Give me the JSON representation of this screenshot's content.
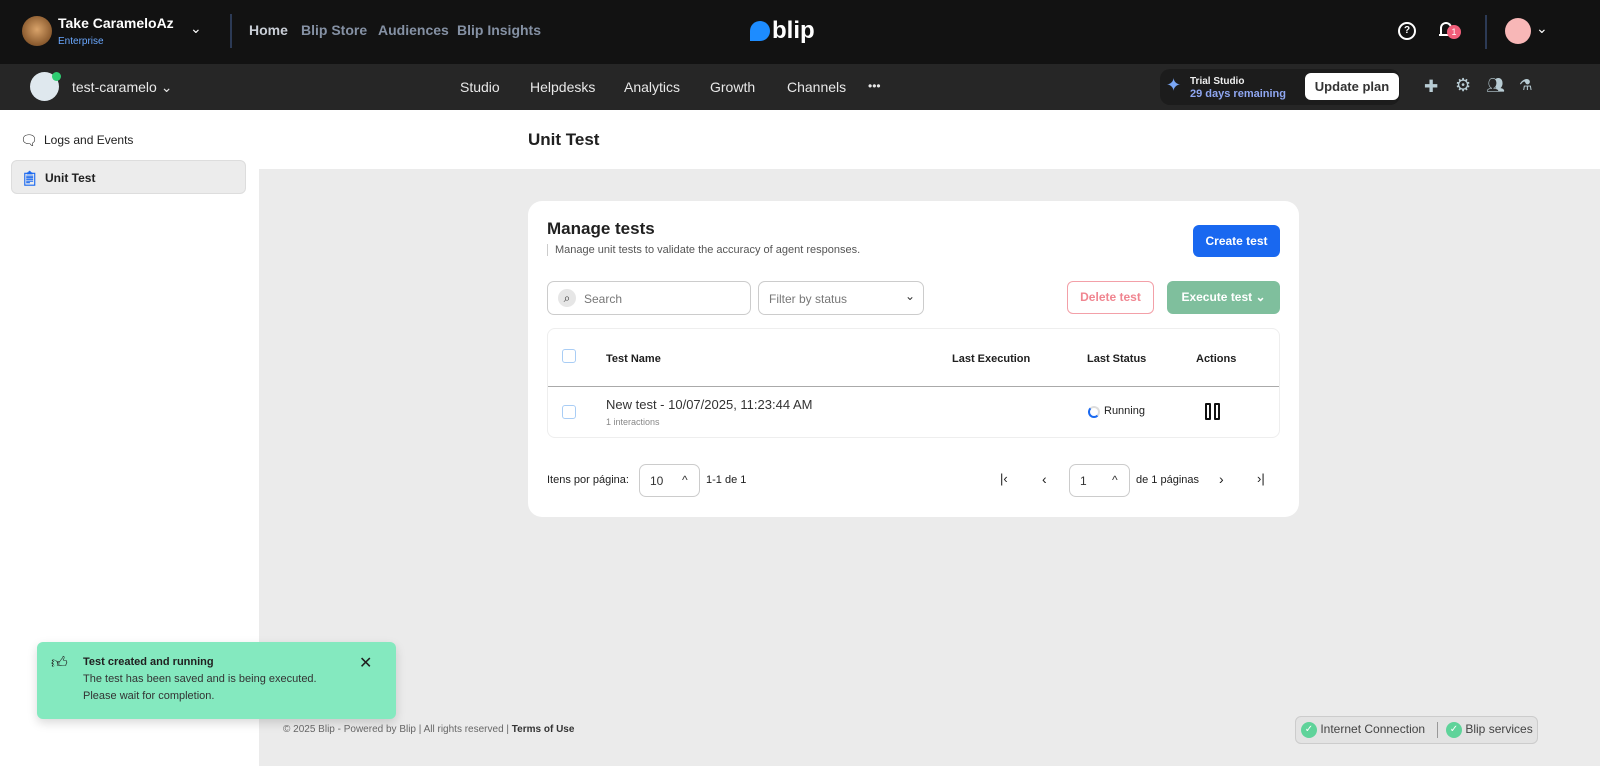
{
  "topbar": {
    "org_name": "Take CarameloAz",
    "org_plan": "Enterprise",
    "nav": [
      "Home",
      "Blip Store",
      "Audiences",
      "Blip Insights"
    ],
    "logo": "blip",
    "notification_count": "1"
  },
  "subbar": {
    "bot_name": "test-caramelo",
    "nav": [
      "Studio",
      "Helpdesks",
      "Analytics",
      "Growth",
      "Channels"
    ],
    "more": "•••",
    "trial_title": "Trial Studio",
    "trial_remaining": "29 days remaining",
    "update_plan": "Update plan"
  },
  "sidebar": {
    "items": [
      {
        "label": "Logs and Events"
      },
      {
        "label": "Unit Test"
      }
    ]
  },
  "page": {
    "title": "Unit Test"
  },
  "card": {
    "title": "Manage tests",
    "subtitle": "Manage unit tests to validate the accuracy of agent responses.",
    "create": "Create test",
    "search_placeholder": "Search",
    "filter_placeholder": "Filter by status",
    "delete": "Delete test",
    "execute": "Execute test"
  },
  "table": {
    "headers": [
      "Test Name",
      "Last Execution",
      "Last Status",
      "Actions"
    ],
    "rows": [
      {
        "name": "New test - 10/07/2025, 11:23:44 AM",
        "sub": "1 interactions",
        "last_execution": "",
        "status": "Running"
      }
    ]
  },
  "pagination": {
    "per_page_label": "Itens por página:",
    "per_page": "10",
    "range": "1-1 de 1",
    "page": "1",
    "pages_label": "de 1 páginas"
  },
  "toast": {
    "title": "Test created and running",
    "line1": "The test has been saved and is being executed.",
    "line2": "Please wait for completion."
  },
  "footer": {
    "copyright": "© 2025 Blip - Powered by Blip | All rights reserved |",
    "terms": "Terms of Use",
    "internet": "Internet Connection",
    "services": "Blip services"
  },
  "colors": {
    "primary": "#1968f0",
    "execute": "#7fbf9d",
    "toast": "#84e9bf",
    "delete": "#f3a0a8"
  }
}
